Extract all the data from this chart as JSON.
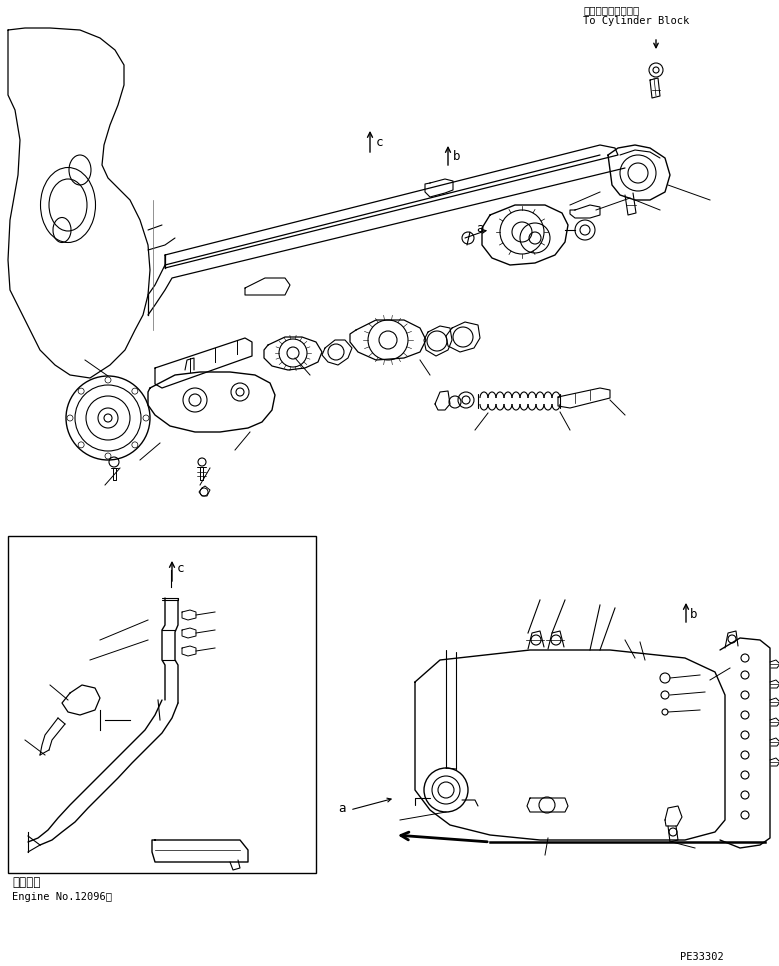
{
  "figure_width": 7.79,
  "figure_height": 9.66,
  "dpi": 100,
  "bg_color": "#ffffff",
  "top_right_line1": "シリンダブロックへ",
  "top_right_line2": "To Cylinder Block",
  "box_label1": "適用号機",
  "box_label2": "Engine No.12096～",
  "part_number": "PE33302",
  "la": "a",
  "lb": "b",
  "lc": "c"
}
